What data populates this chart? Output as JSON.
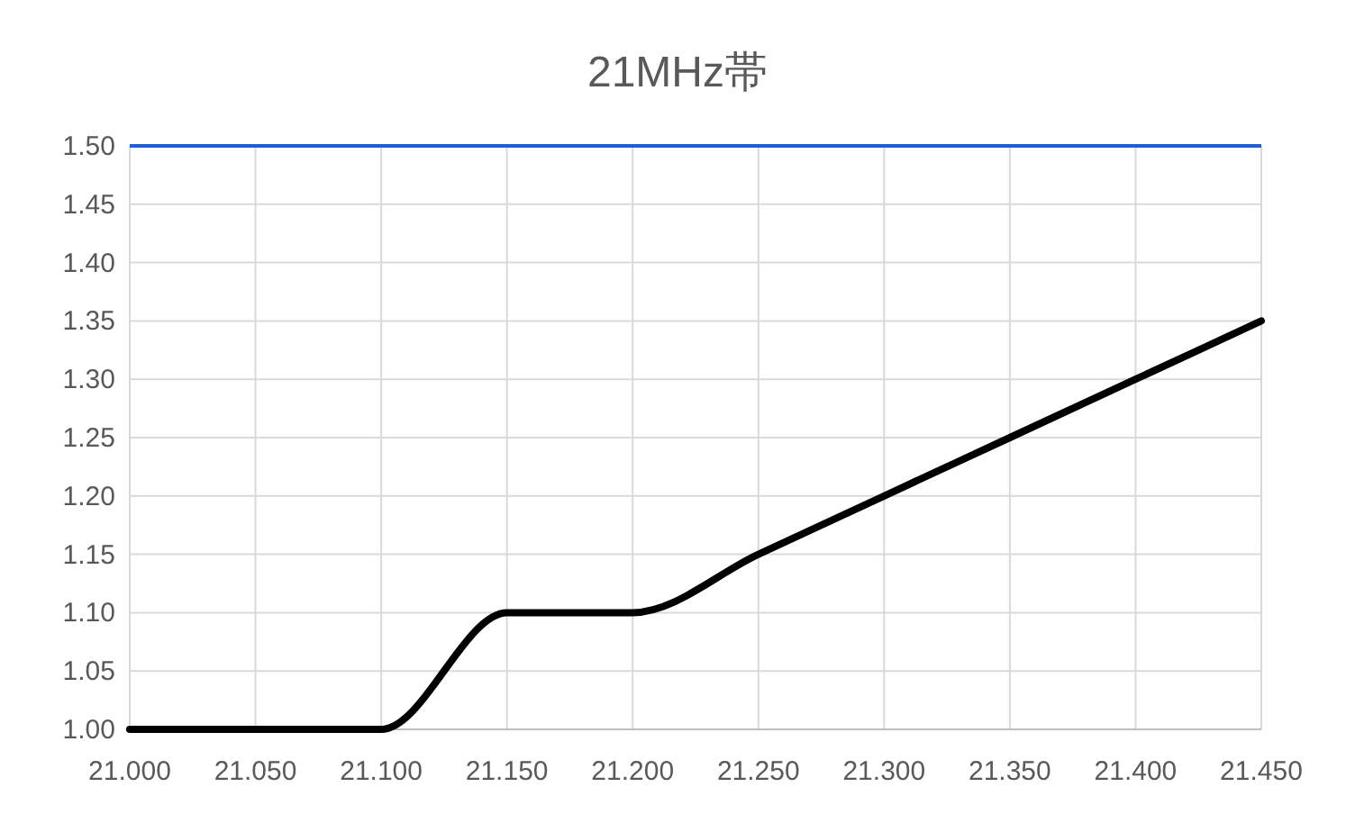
{
  "chart_data": {
    "type": "line",
    "title": "21MHz帯",
    "categories": [
      "21.000",
      "21.050",
      "21.100",
      "21.150",
      "21.200",
      "21.250",
      "21.300",
      "21.350",
      "21.400",
      "21.450"
    ],
    "series": [
      {
        "color": "#000000",
        "values": [
          1.0,
          1.0,
          1.0,
          1.1,
          1.1,
          1.15,
          1.2,
          1.25,
          1.3,
          1.35
        ]
      }
    ],
    "ylim": [
      1.0,
      1.5
    ],
    "yticks": [
      {
        "value": 1.0,
        "label": "1.00"
      },
      {
        "value": 1.05,
        "label": "1.05"
      },
      {
        "value": 1.1,
        "label": "1.10"
      },
      {
        "value": 1.15,
        "label": "1.15"
      },
      {
        "value": 1.2,
        "label": "1.20"
      },
      {
        "value": 1.25,
        "label": "1.25"
      },
      {
        "value": 1.3,
        "label": "1.30"
      },
      {
        "value": 1.35,
        "label": "1.35"
      },
      {
        "value": 1.4,
        "label": "1.40"
      },
      {
        "value": 1.45,
        "label": "1.45"
      },
      {
        "value": 1.5,
        "label": "1.50"
      }
    ],
    "grid": true,
    "ref_lines": [
      {
        "axis": "y",
        "value": 1.5,
        "color": "#1f5fd6"
      }
    ]
  }
}
